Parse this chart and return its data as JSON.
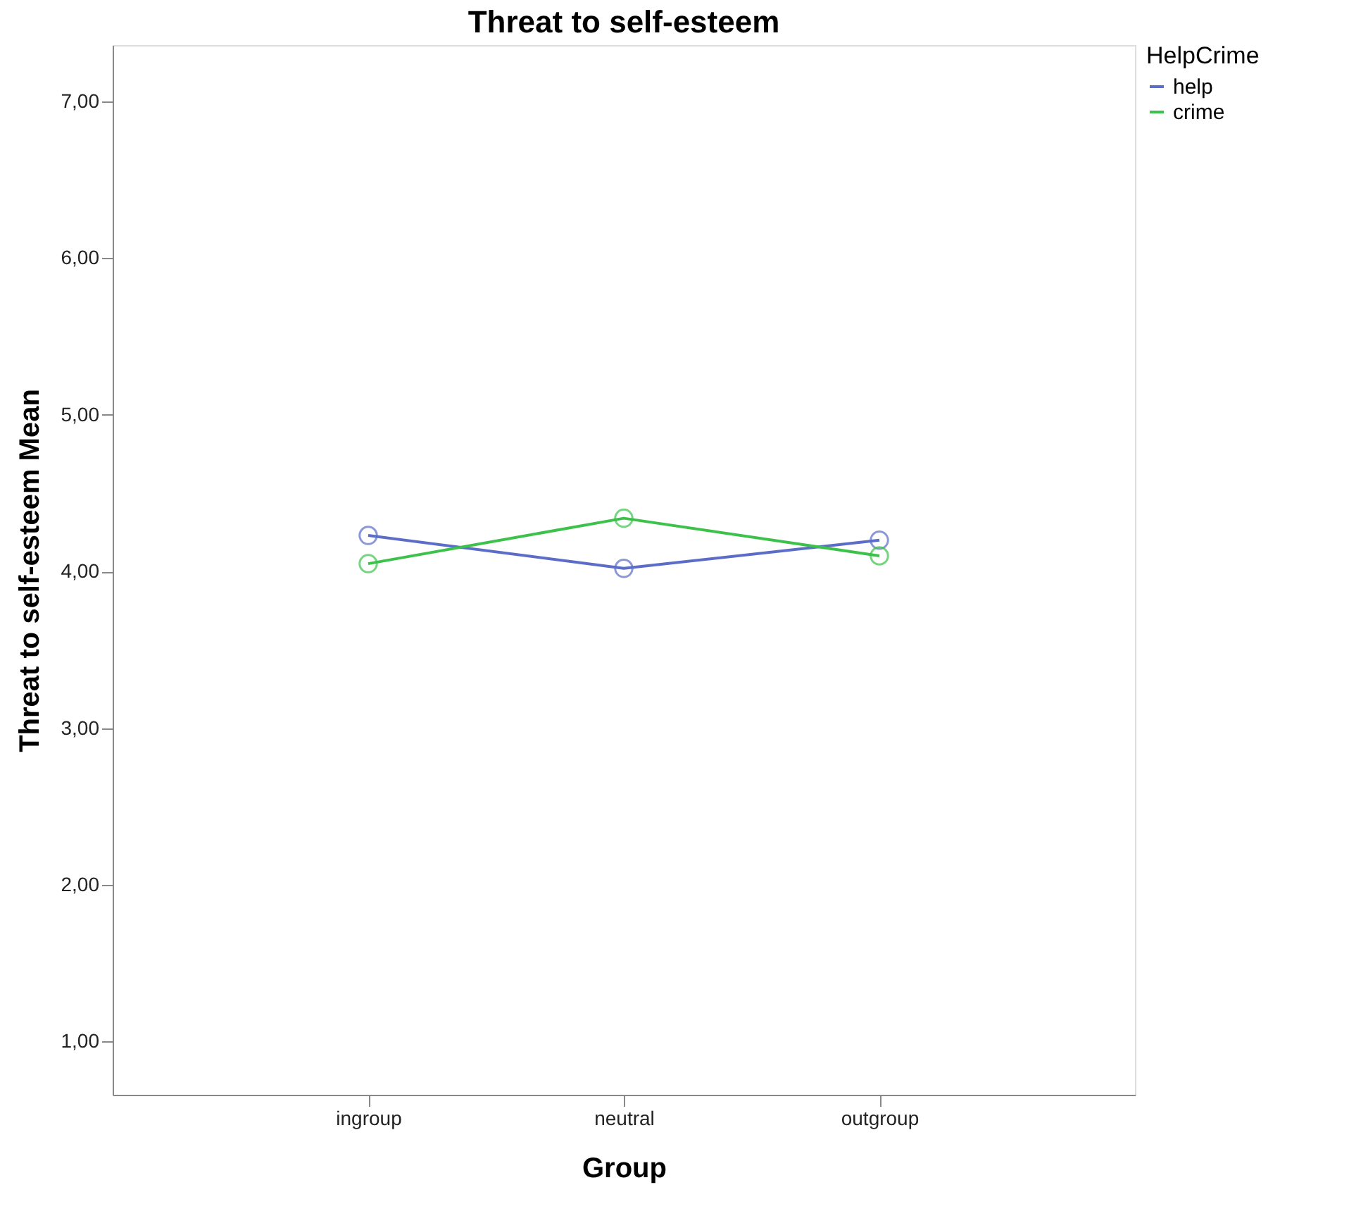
{
  "chart_data": {
    "type": "line",
    "title": "Threat to self-esteem",
    "xlabel": "Group",
    "ylabel": "Threat to self-esteem Mean",
    "legend_title": "HelpCrime",
    "categories": [
      "ingroup",
      "neutral",
      "outgroup"
    ],
    "series": [
      {
        "name": "help",
        "color": "#5b6dc8",
        "values": [
          4.23,
          4.02,
          4.2
        ]
      },
      {
        "name": "crime",
        "color": "#3cc24a",
        "values": [
          4.05,
          4.34,
          4.1
        ]
      }
    ],
    "ylim": [
      0.66,
      7.36
    ],
    "yticks": [
      {
        "value": 1,
        "label": "1,00"
      },
      {
        "value": 2,
        "label": "2,00"
      },
      {
        "value": 3,
        "label": "3,00"
      },
      {
        "value": 4,
        "label": "4,00"
      },
      {
        "value": 5,
        "label": "5,00"
      },
      {
        "value": 6,
        "label": "6,00"
      },
      {
        "value": 7,
        "label": "7,00"
      }
    ],
    "grid": false,
    "legend": "top right",
    "marker": "circle",
    "line_style": "solid"
  }
}
